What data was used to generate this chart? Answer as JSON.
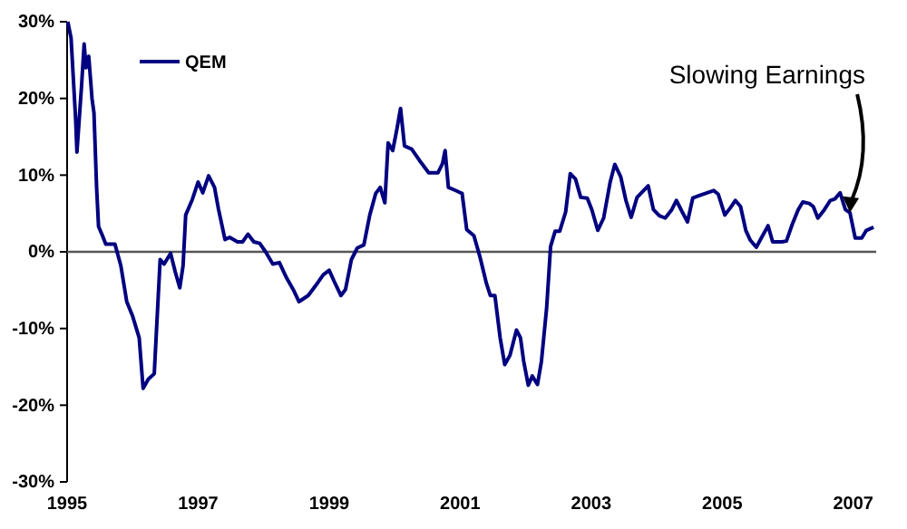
{
  "chart_data": {
    "type": "line",
    "legend": "top left",
    "ylim": [
      -30,
      30
    ],
    "xlim": [
      1995,
      2007.35
    ],
    "yticks": [
      {
        "value": -30,
        "label": "-30%"
      },
      {
        "value": -20,
        "label": "-20%"
      },
      {
        "value": -10,
        "label": "-10%"
      },
      {
        "value": 0,
        "label": "0%"
      },
      {
        "value": 10,
        "label": "10%"
      },
      {
        "value": 20,
        "label": "20%"
      },
      {
        "value": 30,
        "label": "30%"
      }
    ],
    "xticks": [
      1995,
      1997,
      1999,
      2001,
      2003,
      2005,
      2007
    ],
    "ref_lines": [
      {
        "axis": "y",
        "value": 0,
        "color": "#555555"
      }
    ],
    "annotations": [
      {
        "text": "Slowing Earnings",
        "x": 2006.95,
        "y": 5.1
      }
    ],
    "series": [
      {
        "name": "QEM",
        "color": "#000080",
        "x": [
          1995.01,
          1995.06,
          1995.13,
          1995.15,
          1995.18,
          1995.22,
          1995.26,
          1995.29,
          1995.33,
          1995.38,
          1995.41,
          1995.45,
          1995.48,
          1995.54,
          1995.59,
          1995.73,
          1995.82,
          1995.91,
          1996.0,
          1996.1,
          1996.16,
          1996.24,
          1996.33,
          1996.42,
          1996.48,
          1996.58,
          1996.65,
          1996.72,
          1996.77,
          1996.81,
          1996.91,
          1997.0,
          1997.07,
          1997.16,
          1997.25,
          1997.31,
          1997.41,
          1997.48,
          1997.6,
          1997.68,
          1997.76,
          1997.85,
          1997.94,
          1998.03,
          1998.14,
          1998.24,
          1998.35,
          1998.45,
          1998.54,
          1998.68,
          1998.82,
          1998.91,
          1999.0,
          1999.09,
          1999.18,
          1999.25,
          1999.34,
          1999.43,
          1999.53,
          1999.62,
          1999.71,
          1999.78,
          1999.85,
          1999.9,
          1999.97,
          2000.03,
          2000.09,
          2000.15,
          2000.26,
          2000.38,
          2000.52,
          2000.66,
          2000.73,
          2000.77,
          2000.82,
          2000.93,
          2001.03,
          2001.1,
          2001.21,
          2001.3,
          2001.4,
          2001.46,
          2001.53,
          2001.61,
          2001.68,
          2001.76,
          2001.86,
          2001.92,
          2001.97,
          2002.04,
          2002.1,
          2002.18,
          2002.24,
          2002.32,
          2002.38,
          2002.45,
          2002.52,
          2002.61,
          2002.68,
          2002.76,
          2002.84,
          2002.94,
          2003.01,
          2003.1,
          2003.19,
          2003.29,
          2003.36,
          2003.45,
          2003.53,
          2003.61,
          2003.7,
          2003.79,
          2003.87,
          2003.95,
          2004.04,
          2004.13,
          2004.23,
          2004.3,
          2004.39,
          2004.47,
          2004.55,
          2004.64,
          2004.74,
          2004.87,
          2004.94,
          2005.04,
          2005.13,
          2005.2,
          2005.28,
          2005.36,
          2005.43,
          2005.52,
          2005.61,
          2005.7,
          2005.77,
          2005.91,
          2005.98,
          2006.07,
          2006.16,
          2006.23,
          2006.33,
          2006.39,
          2006.46,
          2006.56,
          2006.65,
          2006.72,
          2006.8,
          2006.88,
          2006.95,
          2007.03,
          2007.13,
          2007.2,
          2007.31
        ],
        "values": [
          30,
          27.9,
          17.3,
          13,
          16.7,
          21.6,
          27.1,
          24,
          25.5,
          20,
          18.1,
          8.4,
          3.3,
          2.1,
          1,
          1,
          -1.8,
          -6.5,
          -8.4,
          -11.2,
          -17.8,
          -16.6,
          -15.9,
          -1,
          -1.6,
          -0.2,
          -2.6,
          -4.7,
          -1.8,
          4.8,
          6.8,
          9.1,
          7.7,
          9.9,
          8.4,
          5.6,
          1.6,
          1.9,
          1.3,
          1.3,
          2.3,
          1.3,
          1.1,
          0,
          -1.6,
          -1.4,
          -3.4,
          -4.9,
          -6.5,
          -5.7,
          -4.1,
          -3,
          -2.4,
          -4.1,
          -5.7,
          -4.9,
          -1,
          0.5,
          0.9,
          4.8,
          7.6,
          8.4,
          6.4,
          14.2,
          13.2,
          15.8,
          18.7,
          13.8,
          13.4,
          11.9,
          10.3,
          10.3,
          11.5,
          13.2,
          8.4,
          8,
          7.6,
          2.9,
          2.1,
          -0.6,
          -4.1,
          -5.7,
          -5.7,
          -11.2,
          -14.7,
          -13.5,
          -10.2,
          -11.2,
          -14.3,
          -17.4,
          -16.2,
          -17.3,
          -14.3,
          -7.3,
          0.7,
          2.7,
          2.7,
          5.2,
          10.2,
          9.5,
          7.1,
          7,
          5.5,
          2.8,
          4.4,
          9.1,
          11.4,
          9.8,
          6.7,
          4.5,
          7.1,
          7.9,
          8.6,
          5.5,
          4.7,
          4.4,
          5.5,
          6.7,
          5.2,
          3.9,
          7,
          7.3,
          7.6,
          8,
          7.5,
          4.8,
          5.8,
          6.7,
          5.9,
          2.8,
          1.5,
          0.6,
          2,
          3.4,
          1.3,
          1.3,
          1.4,
          3.6,
          5.5,
          6.5,
          6.3,
          5.9,
          4.4,
          5.5,
          6.7,
          6.9,
          7.7,
          5.5,
          5.1,
          1.8,
          1.8,
          2.8,
          3.2
        ]
      }
    ]
  }
}
